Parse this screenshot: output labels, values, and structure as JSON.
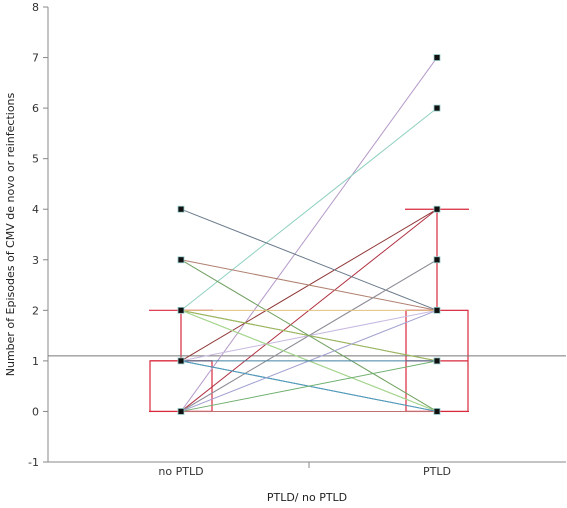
{
  "chart_data": {
    "type": "line",
    "xlabel": "PTLD/ no PTLD",
    "ylabel": "Number of Episodes of CMV de novo or reinfections",
    "categories": [
      "no PTLD",
      "PTLD"
    ],
    "ylim": [
      -1,
      8
    ],
    "yticks": [
      -1,
      0,
      1,
      2,
      3,
      4,
      5,
      6,
      7,
      8
    ],
    "grid": false,
    "reference_line": 1.1,
    "pairs": [
      {
        "from": 0,
        "to": 7,
        "color": "#b49ac8"
      },
      {
        "from": 2,
        "to": 6,
        "color": "#8fd0c0"
      },
      {
        "from": 0,
        "to": 4,
        "color": "#b03040"
      },
      {
        "from": 1,
        "to": 4,
        "color": "#903838"
      },
      {
        "from": 4,
        "to": 2,
        "color": "#6a7a8a"
      },
      {
        "from": 3,
        "to": 2,
        "color": "#b08070"
      },
      {
        "from": 0,
        "to": 3,
        "color": "#e0a080"
      },
      {
        "from": 0,
        "to": 3,
        "color": "#8890a0"
      },
      {
        "from": 1,
        "to": 2,
        "color": "#c8b8e0"
      },
      {
        "from": 2,
        "to": 1,
        "color": "#6a9a4a"
      },
      {
        "from": 2,
        "to": 1,
        "color": "#a0b860"
      },
      {
        "from": 2,
        "to": 0,
        "color": "#80b870"
      },
      {
        "from": 3,
        "to": 0,
        "color": "#70a060"
      },
      {
        "from": 2,
        "to": 0,
        "color": "#a8d890"
      },
      {
        "from": 1,
        "to": 0,
        "color": "#405880"
      },
      {
        "from": 1,
        "to": 0,
        "color": "#50a0c0"
      },
      {
        "from": 0,
        "to": 1,
        "color": "#70b070"
      },
      {
        "from": 0,
        "to": 2,
        "color": "#a0a0d0"
      },
      {
        "from": 0,
        "to": 0,
        "color": "#c07070"
      },
      {
        "from": 1,
        "to": 1,
        "color": "#4080a0"
      },
      {
        "from": 2,
        "to": 2,
        "color": "#e0c080"
      }
    ],
    "boxes": [
      {
        "category": "no PTLD",
        "q1": 0,
        "median": 1,
        "q3": 1,
        "whisker_low": 0,
        "whisker_high": 2
      },
      {
        "category": "PTLD",
        "q1": 0,
        "median": 1,
        "q3": 2,
        "whisker_low": 0,
        "whisker_high": 4
      }
    ]
  }
}
